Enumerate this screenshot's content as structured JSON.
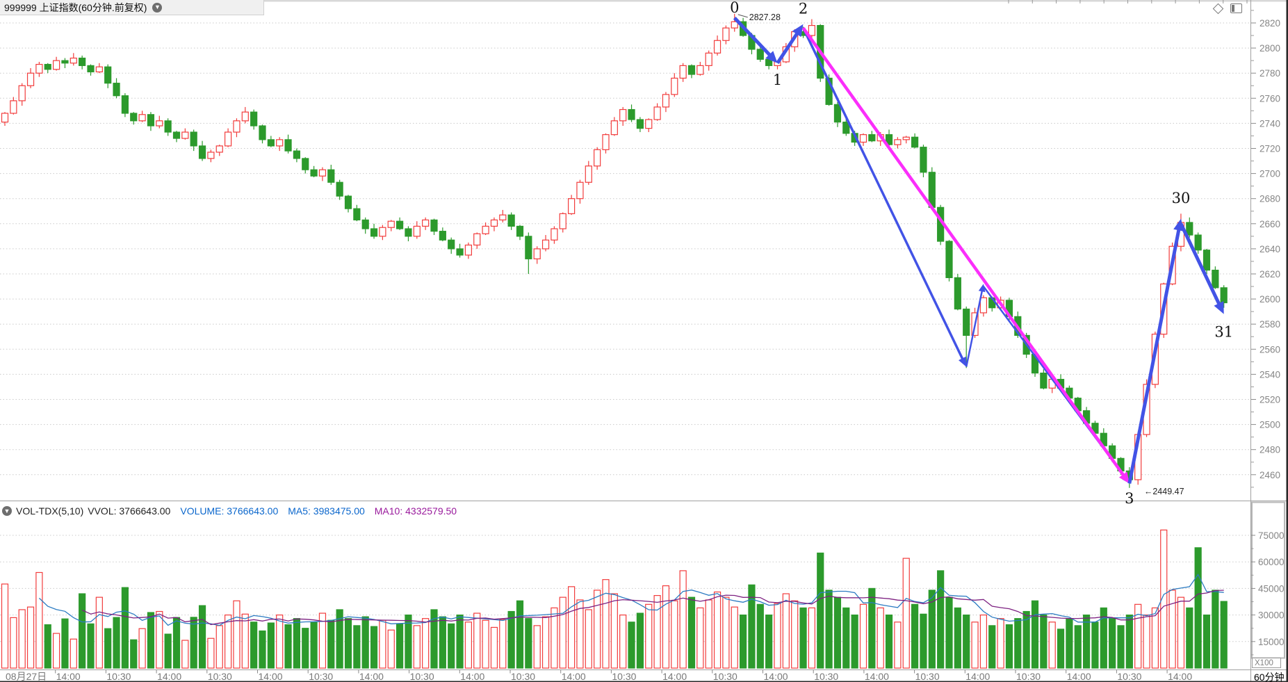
{
  "title_bar": {
    "title": "999999 上证指数(60分钟.前复权)"
  },
  "top_icons": {
    "diamond": "diamond-outline",
    "layout": "panel-layout"
  },
  "indicator_header": {
    "name": "VOL-TDX(5,10)",
    "vvol": "VVOL: 3766643.00",
    "volume": "VOLUME: 3766643.00",
    "ma5": "MA5: 3983475.00",
    "ma10": "MA10: 4332579.50"
  },
  "right_axis": {
    "multiplier_label": "X100",
    "period_label": "60分钟"
  },
  "chart_data": {
    "type": "candlestick+volume",
    "title": "999999 上证指数(60分钟.前复权)",
    "period": "60分钟",
    "price_axis": {
      "ticks": [
        2820,
        2800,
        2780,
        2760,
        2740,
        2720,
        2700,
        2680,
        2660,
        2640,
        2620,
        2600,
        2580,
        2560,
        2540,
        2520,
        2500,
        2480,
        2460
      ],
      "ylim": [
        2449,
        2830
      ],
      "grid": "dotted"
    },
    "volume_axis": {
      "ticks": [
        75000,
        60000,
        45000,
        30000,
        15000
      ],
      "multiplier": "X100"
    },
    "time_labels": [
      "08月27日",
      "14:00",
      "10:30",
      "14:00",
      "10:30",
      "14:00",
      "10:30",
      "14:00",
      "10:30",
      "14:00",
      "10:30",
      "14:00",
      "10:30",
      "14:00",
      "10:30",
      "14:00",
      "10:30",
      "14:00",
      "10:30",
      "14:00",
      "10:30",
      "14:00",
      "10:30",
      "14:00"
    ],
    "candles_close": [
      2748,
      2758,
      2770,
      2780,
      2787,
      2783,
      2790,
      2788,
      2792,
      2786,
      2781,
      2785,
      2772,
      2762,
      2748,
      2742,
      2747,
      2738,
      2742,
      2733,
      2728,
      2733,
      2722,
      2712,
      2717,
      2722,
      2733,
      2742,
      2749,
      2738,
      2727,
      2722,
      2727,
      2718,
      2712,
      2703,
      2698,
      2703,
      2693,
      2682,
      2672,
      2663,
      2656,
      2650,
      2657,
      2662,
      2656,
      2650,
      2658,
      2663,
      2654,
      2647,
      2640,
      2635,
      2643,
      2652,
      2658,
      2663,
      2667,
      2658,
      2650,
      2632,
      2640,
      2647,
      2656,
      2668,
      2680,
      2693,
      2706,
      2719,
      2731,
      2742,
      2751,
      2743,
      2736,
      2743,
      2753,
      2763,
      2776,
      2786,
      2779,
      2786,
      2796,
      2806,
      2816,
      2821,
      2810,
      2799,
      2791,
      2786,
      2789,
      2801,
      2813,
      2810,
      2818,
      2776,
      2755,
      2741,
      2732,
      2725,
      2731,
      2726,
      2731,
      2723,
      2727,
      2729,
      2721,
      2701,
      2673,
      2646,
      2617,
      2592,
      2571,
      2589,
      2601,
      2593,
      2599,
      2586,
      2571,
      2556,
      2541,
      2529,
      2536,
      2529,
      2521,
      2511,
      2501,
      2493,
      2483,
      2473,
      2463,
      2456,
      2492,
      2532,
      2572,
      2612,
      2642,
      2661,
      2651,
      2639,
      2623,
      2609,
      2597
    ],
    "first_open": 2741,
    "wick_overrides": [
      [
        61,
        "low",
        2620
      ],
      [
        85,
        "high",
        2827.28
      ],
      [
        94,
        "high",
        2823
      ],
      [
        112,
        "low",
        2545
      ],
      [
        131,
        "low",
        2449.47
      ],
      [
        137,
        "high",
        2668
      ]
    ],
    "volumes": [
      47500,
      28500,
      33000,
      34500,
      54000,
      24500,
      19600,
      27800,
      16400,
      42000,
      25000,
      40000,
      22300,
      28600,
      45500,
      16000,
      22300,
      31400,
      32000,
      19200,
      28600,
      15700,
      28700,
      35300,
      16800,
      24000,
      30000,
      38000,
      30500,
      26000,
      21000,
      25500,
      30000,
      24500,
      28000,
      22500,
      26000,
      31000,
      27000,
      33000,
      28000,
      24000,
      29000,
      23500,
      27000,
      21500,
      25000,
      30000,
      24000,
      28000,
      33000,
      29000,
      25000,
      30000,
      26000,
      31000,
      27000,
      23000,
      27500,
      32000,
      38000,
      28000,
      24000,
      29000,
      34000,
      40000,
      46000,
      38500,
      33000,
      44000,
      50000,
      42000,
      30000,
      26000,
      31000,
      36000,
      41000,
      46500,
      38000,
      55000,
      40000,
      34000,
      38500,
      43000,
      40000,
      34500,
      30000,
      47000,
      36000,
      30000,
      36500,
      42000,
      38000,
      34000,
      34000,
      65000,
      44000,
      40000,
      34000,
      30000,
      36000,
      45000,
      34000,
      30000,
      26000,
      62000,
      36000,
      30500,
      44000,
      55000,
      40000,
      34000,
      30000,
      26000,
      30000,
      24000,
      28000,
      24500,
      28000,
      32000,
      38000,
      30000,
      26000,
      22000,
      28000,
      24000,
      30000,
      26000,
      34000,
      28000,
      24000,
      30000,
      36000,
      30000,
      34000,
      78000,
      44000,
      40000,
      34000,
      68000,
      30000,
      44000,
      37666
    ],
    "indicator_values": {
      "vvol": 3766643.0,
      "volume": 3766643.0,
      "ma5": 3983475.0,
      "ma10": 4332579.5
    },
    "annotations": {
      "wave_labels": [
        {
          "text": "0",
          "bar": 85,
          "price": 2827.28,
          "pos": "above"
        },
        {
          "text": "1",
          "bar": 90,
          "price": 2783,
          "pos": "below"
        },
        {
          "text": "2",
          "bar": 93,
          "price": 2823,
          "pos": "above"
        },
        {
          "text": "3",
          "bar": 131,
          "price": 2449.47,
          "pos": "below"
        },
        {
          "text": "30",
          "bar": 137,
          "price": 2672,
          "pos": "above"
        },
        {
          "text": "31",
          "bar": 142,
          "price": 2582,
          "pos": "below"
        }
      ],
      "callouts": [
        {
          "text": "2827.28",
          "bar": 85,
          "price": 2827.28,
          "leader": true
        },
        {
          "text": "←2449.47",
          "bar": 131,
          "price": 2449.47,
          "leader": false
        }
      ],
      "arrows": [
        {
          "from": [
            85,
            2824
          ],
          "to": [
            90,
            2788
          ],
          "color": "blue",
          "w": 5
        },
        {
          "from": [
            90,
            2788
          ],
          "to": [
            93,
            2819
          ],
          "color": "blue",
          "w": 5
        },
        {
          "from": [
            93,
            2816
          ],
          "to": [
            112,
            2546
          ],
          "color": "blue",
          "w": 3.5
        },
        {
          "from": [
            112,
            2546
          ],
          "to": [
            114,
            2612
          ],
          "color": "blue",
          "w": 2.5
        },
        {
          "from": [
            114,
            2610
          ],
          "to": [
            131,
            2453
          ],
          "color": "blue",
          "w": 2.5
        },
        {
          "from": [
            93,
            2816
          ],
          "to": [
            131,
            2453
          ],
          "color": "magenta",
          "w": 4.5
        },
        {
          "from": [
            131,
            2453
          ],
          "to": [
            137,
            2664
          ],
          "color": "blue",
          "w": 5
        },
        {
          "from": [
            137,
            2660
          ],
          "to": [
            142,
            2588
          ],
          "color": "blue",
          "w": 5
        }
      ]
    },
    "colors": {
      "up": "#f23c3c",
      "down": "#2c9a2c",
      "ma5_line": "#2b7bc2",
      "ma10_line": "#7d2181",
      "grid": "#cacaca",
      "blue": "#4253e6",
      "magenta": "#fb2efb",
      "axis_text": "#858585",
      "frame": "#a0a0a0"
    }
  }
}
